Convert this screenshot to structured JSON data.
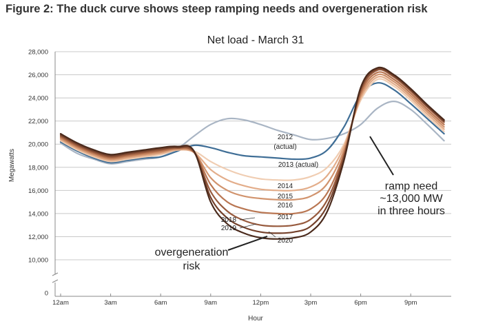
{
  "figure_title": "Figure 2: The duck curve shows steep ramping needs and overgeneration risk",
  "chart_data": {
    "type": "line",
    "title": "Net load - March 31",
    "xlabel": "Hour",
    "ylabel": "Megawatts",
    "ylim": [
      0,
      28000
    ],
    "y_axis_break": true,
    "y_ticks": [
      "0",
      "10,000",
      "12,000",
      "14,000",
      "16,000",
      "18,000",
      "20,000",
      "22,000",
      "24,000",
      "26,000",
      "28,000"
    ],
    "x_ticks": [
      "12am",
      "3am",
      "6am",
      "9am",
      "12pm",
      "3pm",
      "6pm",
      "9pm"
    ],
    "grid": true,
    "x": [
      0,
      1,
      2,
      3,
      4,
      5,
      6,
      7,
      8,
      9,
      10,
      11,
      12,
      13,
      14,
      15,
      16,
      17,
      18,
      19,
      20,
      21,
      22,
      23
    ],
    "series": [
      {
        "name": "2012 (actual)",
        "color": "#a9b5c4",
        "values": [
          20100,
          19200,
          18700,
          18300,
          18500,
          18700,
          18900,
          19600,
          20700,
          21700,
          22200,
          22100,
          21700,
          21200,
          20800,
          20400,
          20500,
          20900,
          21700,
          23100,
          23700,
          23000,
          21700,
          20300
        ]
      },
      {
        "name": "2013 (actual)",
        "color": "#3f6e96",
        "values": [
          20200,
          19400,
          18800,
          18400,
          18600,
          18800,
          18900,
          19400,
          19900,
          19700,
          19300,
          19000,
          18900,
          18800,
          18700,
          18800,
          19500,
          21500,
          24300,
          25300,
          24700,
          23500,
          22200,
          20900
        ]
      },
      {
        "name": "2014",
        "color": "#f0cdb2",
        "values": [
          20300,
          19500,
          18900,
          18500,
          18700,
          18900,
          19100,
          19500,
          19400,
          18500,
          17800,
          17300,
          17000,
          16900,
          16900,
          17200,
          18000,
          20000,
          23800,
          25600,
          25000,
          23800,
          22400,
          21100
        ]
      },
      {
        "name": "2015",
        "color": "#e3ad8a",
        "values": [
          20400,
          19600,
          19000,
          18600,
          18800,
          19000,
          19200,
          19500,
          19300,
          17800,
          16900,
          16400,
          16100,
          16000,
          16000,
          16300,
          17300,
          19800,
          24000,
          25800,
          25200,
          24000,
          22600,
          21300
        ]
      },
      {
        "name": "2016",
        "color": "#d1936d",
        "values": [
          20500,
          19700,
          19100,
          18700,
          18900,
          19100,
          19300,
          19600,
          19300,
          17100,
          16000,
          15500,
          15300,
          15200,
          15200,
          15500,
          16600,
          19500,
          24200,
          26000,
          25400,
          24200,
          22800,
          21500
        ]
      },
      {
        "name": "2017",
        "color": "#b97652",
        "values": [
          20600,
          19800,
          19200,
          18800,
          19000,
          19200,
          19400,
          19600,
          19300,
          16500,
          15000,
          14400,
          14100,
          14000,
          14000,
          14400,
          15800,
          19200,
          24400,
          26200,
          25600,
          24400,
          23000,
          21700
        ]
      },
      {
        "name": "2018",
        "color": "#975a3d",
        "values": [
          20700,
          19900,
          19300,
          18900,
          19100,
          19300,
          19500,
          19700,
          19300,
          15900,
          14200,
          13400,
          13000,
          12900,
          13000,
          13500,
          15200,
          19000,
          24600,
          26400,
          25800,
          24600,
          23200,
          21900
        ]
      },
      {
        "name": "2019",
        "color": "#74412b",
        "values": [
          20800,
          20000,
          19400,
          19000,
          19200,
          19400,
          19600,
          19700,
          19400,
          15400,
          13600,
          12800,
          12400,
          12300,
          12400,
          12900,
          14700,
          18800,
          24800,
          26500,
          25900,
          24700,
          23300,
          22000
        ]
      },
      {
        "name": "2020",
        "color": "#4a2a1c",
        "values": [
          20900,
          20100,
          19500,
          19100,
          19300,
          19500,
          19700,
          19800,
          19400,
          15000,
          13100,
          12300,
          11900,
          11800,
          11900,
          12400,
          14200,
          18600,
          24900,
          26600,
          26000,
          24800,
          23400,
          22100
        ]
      }
    ],
    "series_labels": [
      {
        "text": "2012",
        "series": "2012 (actual)"
      },
      {
        "text": "(actual)",
        "series": "2012 (actual)"
      },
      {
        "text": "2013 (actual)",
        "series": "2013 (actual)"
      },
      {
        "text": "2014",
        "series": "2014"
      },
      {
        "text": "2015",
        "series": "2015"
      },
      {
        "text": "2016",
        "series": "2016"
      },
      {
        "text": "2017",
        "series": "2017"
      },
      {
        "text": "2018",
        "series": "2018"
      },
      {
        "text": "2019",
        "series": "2019"
      },
      {
        "text": "2020",
        "series": "2020"
      }
    ],
    "annotations": [
      {
        "lines": [
          "ramp need",
          "~13,000 MW",
          "in three hours"
        ]
      },
      {
        "lines": [
          "overgeneration",
          "risk"
        ]
      }
    ]
  }
}
